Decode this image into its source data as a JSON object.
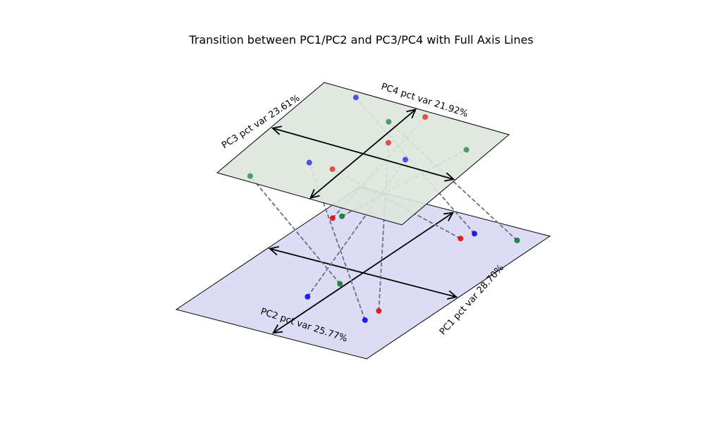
{
  "chart_data": {
    "type": "scatter",
    "title": "Transition between PC1/PC2 and PC3/PC4 with Full Axis Lines",
    "planes": {
      "bottom": {
        "x_label": "PC1 pct var 28.70%",
        "y_label": "PC2 pct var 25.77%",
        "color": "#dcdcf5"
      },
      "top": {
        "x_label": "PC3 pct var 23.61%",
        "y_label": "PC4 pct var 21.92%",
        "color": "#dce7dc"
      }
    },
    "connector_color": "#6e6e7e",
    "points": [
      {
        "color": "red",
        "bottom": [
          -0.85,
          -0.55
        ],
        "top": [
          -0.15,
          0.9
        ]
      },
      {
        "color": "red",
        "bottom": [
          0.35,
          -0.7
        ],
        "top": [
          0.1,
          -0.4
        ]
      },
      {
        "color": "red",
        "bottom": [
          0.55,
          0.4
        ],
        "top": [
          -0.1,
          0.3
        ]
      },
      {
        "color": "green",
        "bottom": [
          -0.8,
          -0.6
        ],
        "top": [
          -0.8,
          0.55
        ]
      },
      {
        "color": "green",
        "bottom": [
          -0.05,
          0.2
        ],
        "top": [
          0.7,
          -0.9
        ]
      },
      {
        "color": "green",
        "bottom": [
          0.8,
          -0.85
        ],
        "top": [
          0.1,
          0.65
        ]
      },
      {
        "color": "blue",
        "bottom": [
          -0.15,
          0.45
        ],
        "top": [
          -0.4,
          0.1
        ]
      },
      {
        "color": "blue",
        "bottom": [
          0.4,
          -0.8
        ],
        "top": [
          0.6,
          0.9
        ]
      },
      {
        "color": "blue",
        "bottom": [
          0.55,
          0.55
        ],
        "top": [
          0.35,
          -0.4
        ]
      }
    ],
    "grid": false,
    "legend": "none"
  }
}
